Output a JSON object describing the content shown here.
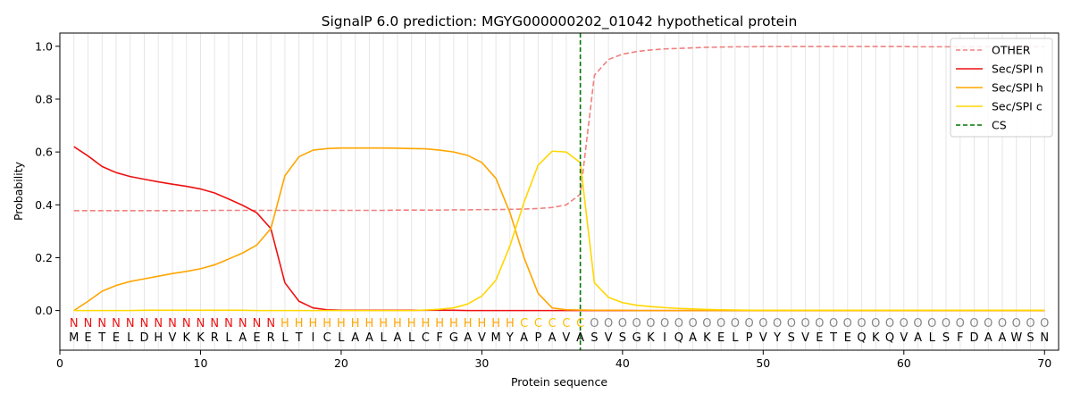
{
  "chart_data": {
    "type": "line",
    "title": "SignalP 6.0 prediction: MGYG000000202_01042 hypothetical protein",
    "xlabel": "Protein sequence",
    "ylabel": "Probability",
    "xlim": [
      0,
      71
    ],
    "ylim": [
      -0.15,
      1.05
    ],
    "xticks": [
      0,
      10,
      20,
      30,
      40,
      50,
      60,
      70
    ],
    "yticks": [
      0.0,
      0.2,
      0.4,
      0.6,
      0.8,
      1.0
    ],
    "xtick_labels": [
      "0",
      "10",
      "20",
      "30",
      "40",
      "50",
      "60",
      "70"
    ],
    "ytick_labels": [
      "0.0",
      "0.2",
      "0.4",
      "0.6",
      "0.8",
      "1.0"
    ],
    "grid": "vertical lines at each residue",
    "legend_position": "top-right",
    "x": [
      1,
      2,
      3,
      4,
      5,
      6,
      7,
      8,
      9,
      10,
      11,
      12,
      13,
      14,
      15,
      16,
      17,
      18,
      19,
      20,
      21,
      22,
      23,
      24,
      25,
      26,
      27,
      28,
      29,
      30,
      31,
      32,
      33,
      34,
      35,
      36,
      37,
      38,
      39,
      40,
      41,
      42,
      43,
      44,
      45,
      46,
      47,
      48,
      49,
      50,
      51,
      52,
      53,
      54,
      55,
      56,
      57,
      58,
      59,
      60,
      61,
      62,
      63,
      64,
      65,
      66,
      67,
      68,
      69,
      70
    ],
    "series": [
      {
        "name": "OTHER",
        "color": "#f08080",
        "dash": "dashed",
        "values": [
          0.378,
          0.378,
          0.378,
          0.378,
          0.378,
          0.378,
          0.378,
          0.378,
          0.378,
          0.378,
          0.379,
          0.379,
          0.379,
          0.379,
          0.379,
          0.379,
          0.379,
          0.379,
          0.379,
          0.379,
          0.379,
          0.379,
          0.379,
          0.38,
          0.38,
          0.38,
          0.38,
          0.381,
          0.381,
          0.382,
          0.382,
          0.383,
          0.384,
          0.386,
          0.39,
          0.4,
          0.44,
          0.89,
          0.95,
          0.97,
          0.98,
          0.986,
          0.99,
          0.992,
          0.994,
          0.996,
          0.997,
          0.998,
          0.998,
          0.999,
          0.999,
          0.999,
          0.999,
          0.999,
          0.999,
          0.999,
          0.999,
          0.999,
          0.999,
          0.999,
          0.998,
          0.998,
          0.998,
          0.998,
          0.998,
          0.998,
          0.998,
          0.998,
          0.998,
          0.998
        ]
      },
      {
        "name": "Sec/SPI n",
        "color": "#ee1111",
        "dash": "solid",
        "values": [
          0.62,
          0.585,
          0.545,
          0.522,
          0.507,
          0.497,
          0.487,
          0.478,
          0.47,
          0.46,
          0.445,
          0.422,
          0.398,
          0.37,
          0.31,
          0.105,
          0.035,
          0.01,
          0.003,
          0.001,
          0.001,
          0.001,
          0.001,
          0.001,
          0.001,
          0.001,
          0.001,
          0.001,
          0.0,
          0.0,
          0.0,
          0.0,
          0.0,
          0.0,
          0.0,
          0.0,
          0.0,
          0.0,
          0.0,
          0.0,
          0.0,
          0.0,
          0.0,
          0.0,
          0.0,
          0.0,
          0.0,
          0.0,
          0.0,
          0.0,
          0.0,
          0.0,
          0.0,
          0.0,
          0.0,
          0.0,
          0.0,
          0.0,
          0.0,
          0.0,
          0.0,
          0.0,
          0.0,
          0.0,
          0.0,
          0.0,
          0.0,
          0.0,
          0.0,
          0.0
        ]
      },
      {
        "name": "Sec/SPI h",
        "color": "#ffa500",
        "dash": "solid",
        "values": [
          0.0,
          0.035,
          0.073,
          0.095,
          0.11,
          0.12,
          0.13,
          0.14,
          0.148,
          0.158,
          0.173,
          0.195,
          0.218,
          0.248,
          0.31,
          0.51,
          0.582,
          0.607,
          0.613,
          0.615,
          0.615,
          0.615,
          0.615,
          0.614,
          0.613,
          0.612,
          0.607,
          0.6,
          0.587,
          0.56,
          0.5,
          0.37,
          0.2,
          0.065,
          0.01,
          0.003,
          0.002,
          0.001,
          0.001,
          0.001,
          0.0,
          0.0,
          0.0,
          0.0,
          0.0,
          0.0,
          0.0,
          0.0,
          0.0,
          0.0,
          0.0,
          0.0,
          0.0,
          0.0,
          0.0,
          0.0,
          0.0,
          0.0,
          0.0,
          0.0,
          0.0,
          0.0,
          0.0,
          0.0,
          0.0,
          0.0,
          0.0,
          0.0,
          0.0,
          0.0
        ]
      },
      {
        "name": "Sec/SPI c",
        "color": "#ffd700",
        "dash": "solid",
        "values": [
          0.0,
          0.0,
          0.0,
          0.0,
          0.0,
          0.001,
          0.001,
          0.001,
          0.001,
          0.001,
          0.001,
          0.001,
          0.001,
          0.0,
          0.0,
          0.0,
          0.0,
          0.0,
          0.0,
          0.0,
          0.0,
          0.0,
          0.0,
          0.0,
          0.0,
          0.002,
          0.005,
          0.01,
          0.025,
          0.055,
          0.115,
          0.245,
          0.41,
          0.55,
          0.603,
          0.6,
          0.56,
          0.105,
          0.05,
          0.03,
          0.02,
          0.015,
          0.011,
          0.008,
          0.006,
          0.004,
          0.003,
          0.002,
          0.001,
          0.001,
          0.001,
          0.001,
          0.001,
          0.001,
          0.001,
          0.001,
          0.001,
          0.001,
          0.001,
          0.001,
          0.001,
          0.001,
          0.001,
          0.001,
          0.001,
          0.001,
          0.001,
          0.001,
          0.001,
          0.001
        ]
      }
    ],
    "cleavage_site": {
      "name": "CS",
      "x": 37,
      "color": "#007700",
      "dash": "dashed"
    },
    "residue_labels": {
      "classes": [
        "N",
        "N",
        "N",
        "N",
        "N",
        "N",
        "N",
        "N",
        "N",
        "N",
        "N",
        "N",
        "N",
        "N",
        "N",
        "H",
        "H",
        "H",
        "H",
        "H",
        "H",
        "H",
        "H",
        "H",
        "H",
        "H",
        "H",
        "H",
        "H",
        "H",
        "H",
        "H",
        "C",
        "C",
        "C",
        "C",
        "C",
        "O",
        "O",
        "O",
        "O",
        "O",
        "O",
        "O",
        "O",
        "O",
        "O",
        "O",
        "O",
        "O",
        "O",
        "O",
        "O",
        "O",
        "O",
        "O",
        "O",
        "O",
        "O",
        "O",
        "O",
        "O",
        "O",
        "O",
        "O",
        "O",
        "O",
        "O",
        "O",
        "O"
      ],
      "sequence": [
        "M",
        "E",
        "T",
        "E",
        "L",
        "D",
        "H",
        "V",
        "K",
        "K",
        "R",
        "L",
        "A",
        "E",
        "R",
        "L",
        "T",
        "I",
        "C",
        "L",
        "A",
        "A",
        "L",
        "A",
        "L",
        "C",
        "F",
        "G",
        "A",
        "V",
        "M",
        "Y",
        "A",
        "P",
        "A",
        "V",
        "A",
        "S",
        "V",
        "S",
        "G",
        "K",
        "I",
        "Q",
        "A",
        "K",
        "E",
        "L",
        "P",
        "V",
        "Y",
        "S",
        "V",
        "E",
        "T",
        "E",
        "Q",
        "K",
        "Q",
        "V",
        "A",
        "L",
        "S",
        "F",
        "D",
        "A",
        "A",
        "W",
        "S",
        "N"
      ],
      "class_colors": {
        "N": "#ee1111",
        "H": "#ffa500",
        "C": "#ffc000",
        "O": "#888888"
      }
    }
  }
}
